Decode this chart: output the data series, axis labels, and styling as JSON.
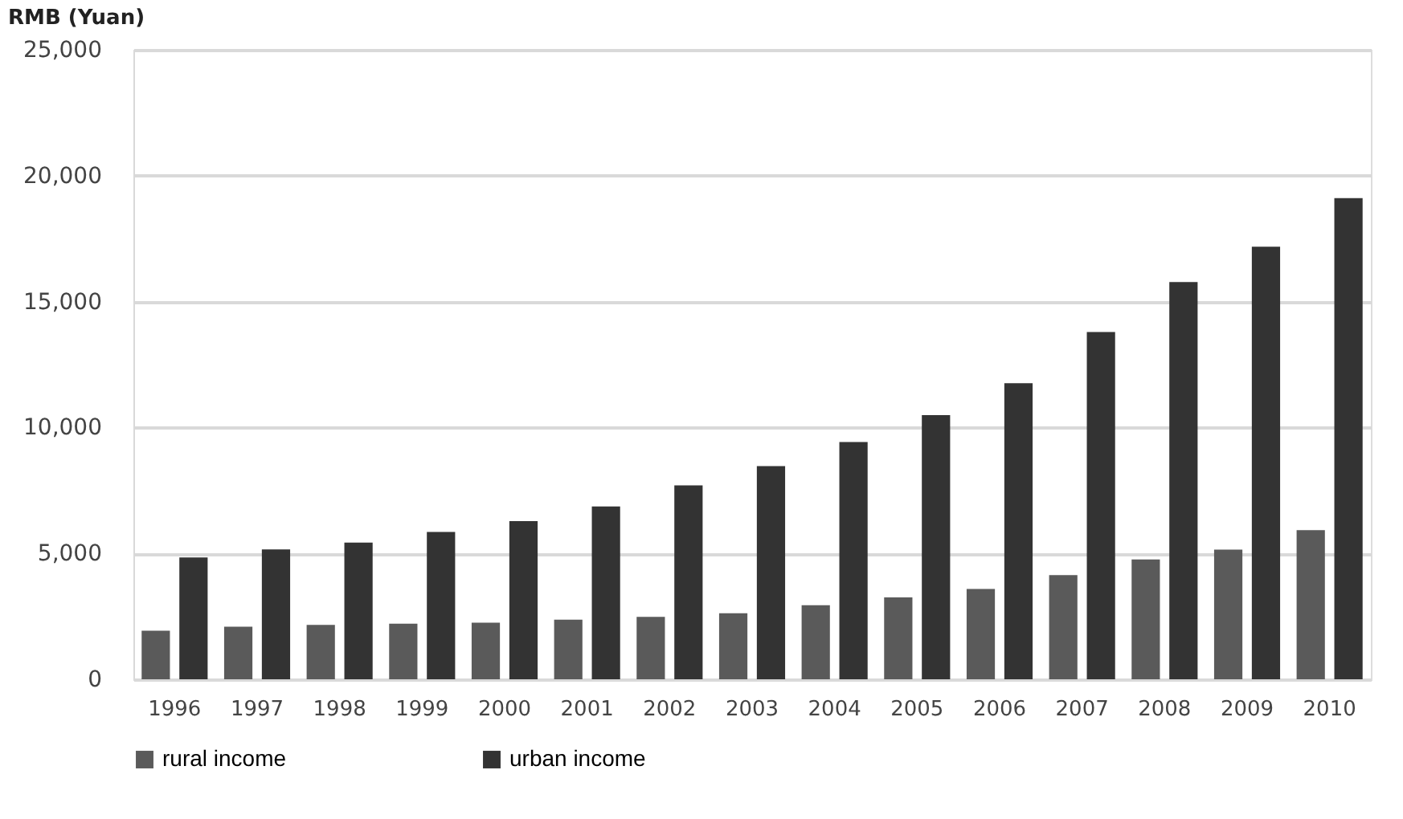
{
  "chart_data": {
    "type": "bar",
    "ylabel": "RMB (Yuan)",
    "categories": [
      "1996",
      "1997",
      "1998",
      "1999",
      "2000",
      "2001",
      "2002",
      "2003",
      "2004",
      "2005",
      "2006",
      "2007",
      "2008",
      "2009",
      "2010"
    ],
    "series": [
      {
        "name": "rural income",
        "color": "#5a5a5a",
        "values": [
          1930,
          2090,
          2160,
          2210,
          2250,
          2370,
          2480,
          2620,
          2940,
          3250,
          3590,
          4140,
          4760,
          5150,
          5920
        ]
      },
      {
        "name": "urban income",
        "color": "#333333",
        "values": [
          4840,
          5160,
          5430,
          5850,
          6280,
          6860,
          7700,
          8470,
          9420,
          10490,
          11760,
          13790,
          15780,
          17180,
          19110
        ]
      }
    ],
    "ylim": [
      0,
      25000
    ],
    "yticks": [
      0,
      {
        "value": 5000,
        "label": "5,000"
      },
      {
        "value": 10000,
        "label": "10,000"
      },
      {
        "value": 15000,
        "label": "15,000"
      },
      {
        "value": 20000,
        "label": "20,000"
      },
      {
        "value": 25000,
        "label": "25,000"
      }
    ],
    "grid": "y",
    "legend": "bottom"
  }
}
